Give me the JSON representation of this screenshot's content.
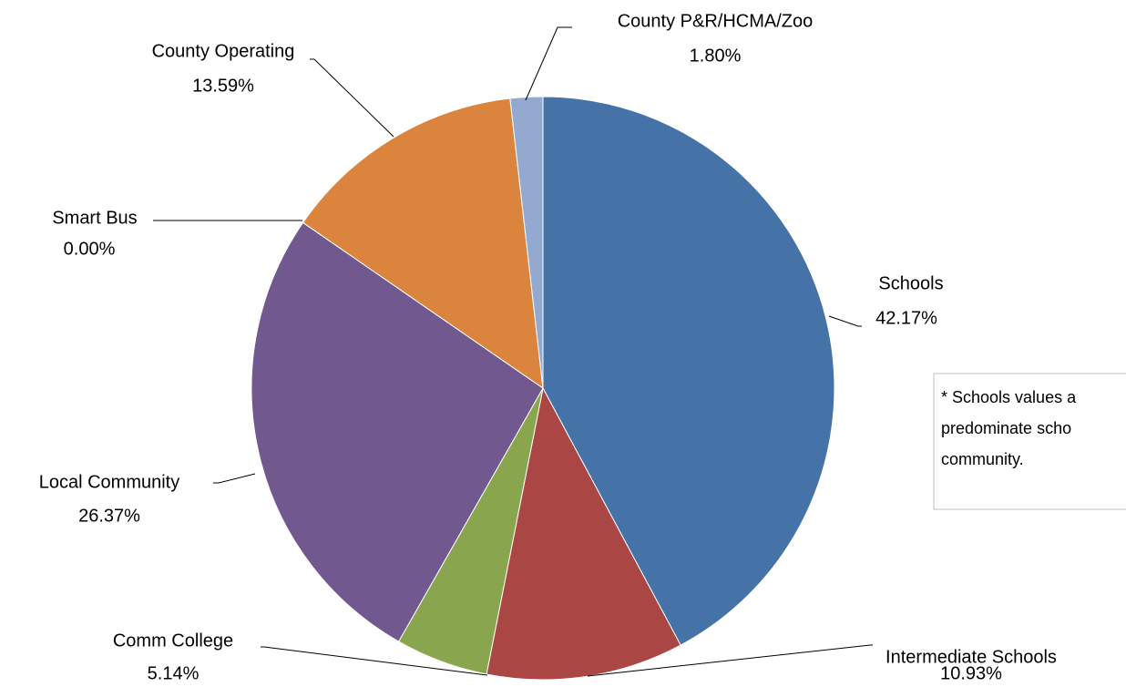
{
  "chart_data": {
    "type": "pie",
    "categories": [
      "Schools",
      "Intermediate Schools",
      "Comm College",
      "Local Community",
      "Smart Bus",
      "County Operating",
      "County P&R/HCMA/Zoo"
    ],
    "values": [
      42.17,
      10.93,
      5.14,
      26.37,
      0.0,
      13.59,
      1.8
    ],
    "value_labels": [
      "42.17%",
      "10.93%",
      "5.14%",
      "26.37%",
      "0.00%",
      "13.59%",
      "1.80%"
    ],
    "colors": [
      "#4572a7",
      "#aa4643",
      "#89a54e",
      "#71588f",
      "#4198af",
      "#db843d",
      "#93a9cf"
    ],
    "annotation": [
      "* Schools values a",
      "predominate scho",
      "community."
    ]
  }
}
